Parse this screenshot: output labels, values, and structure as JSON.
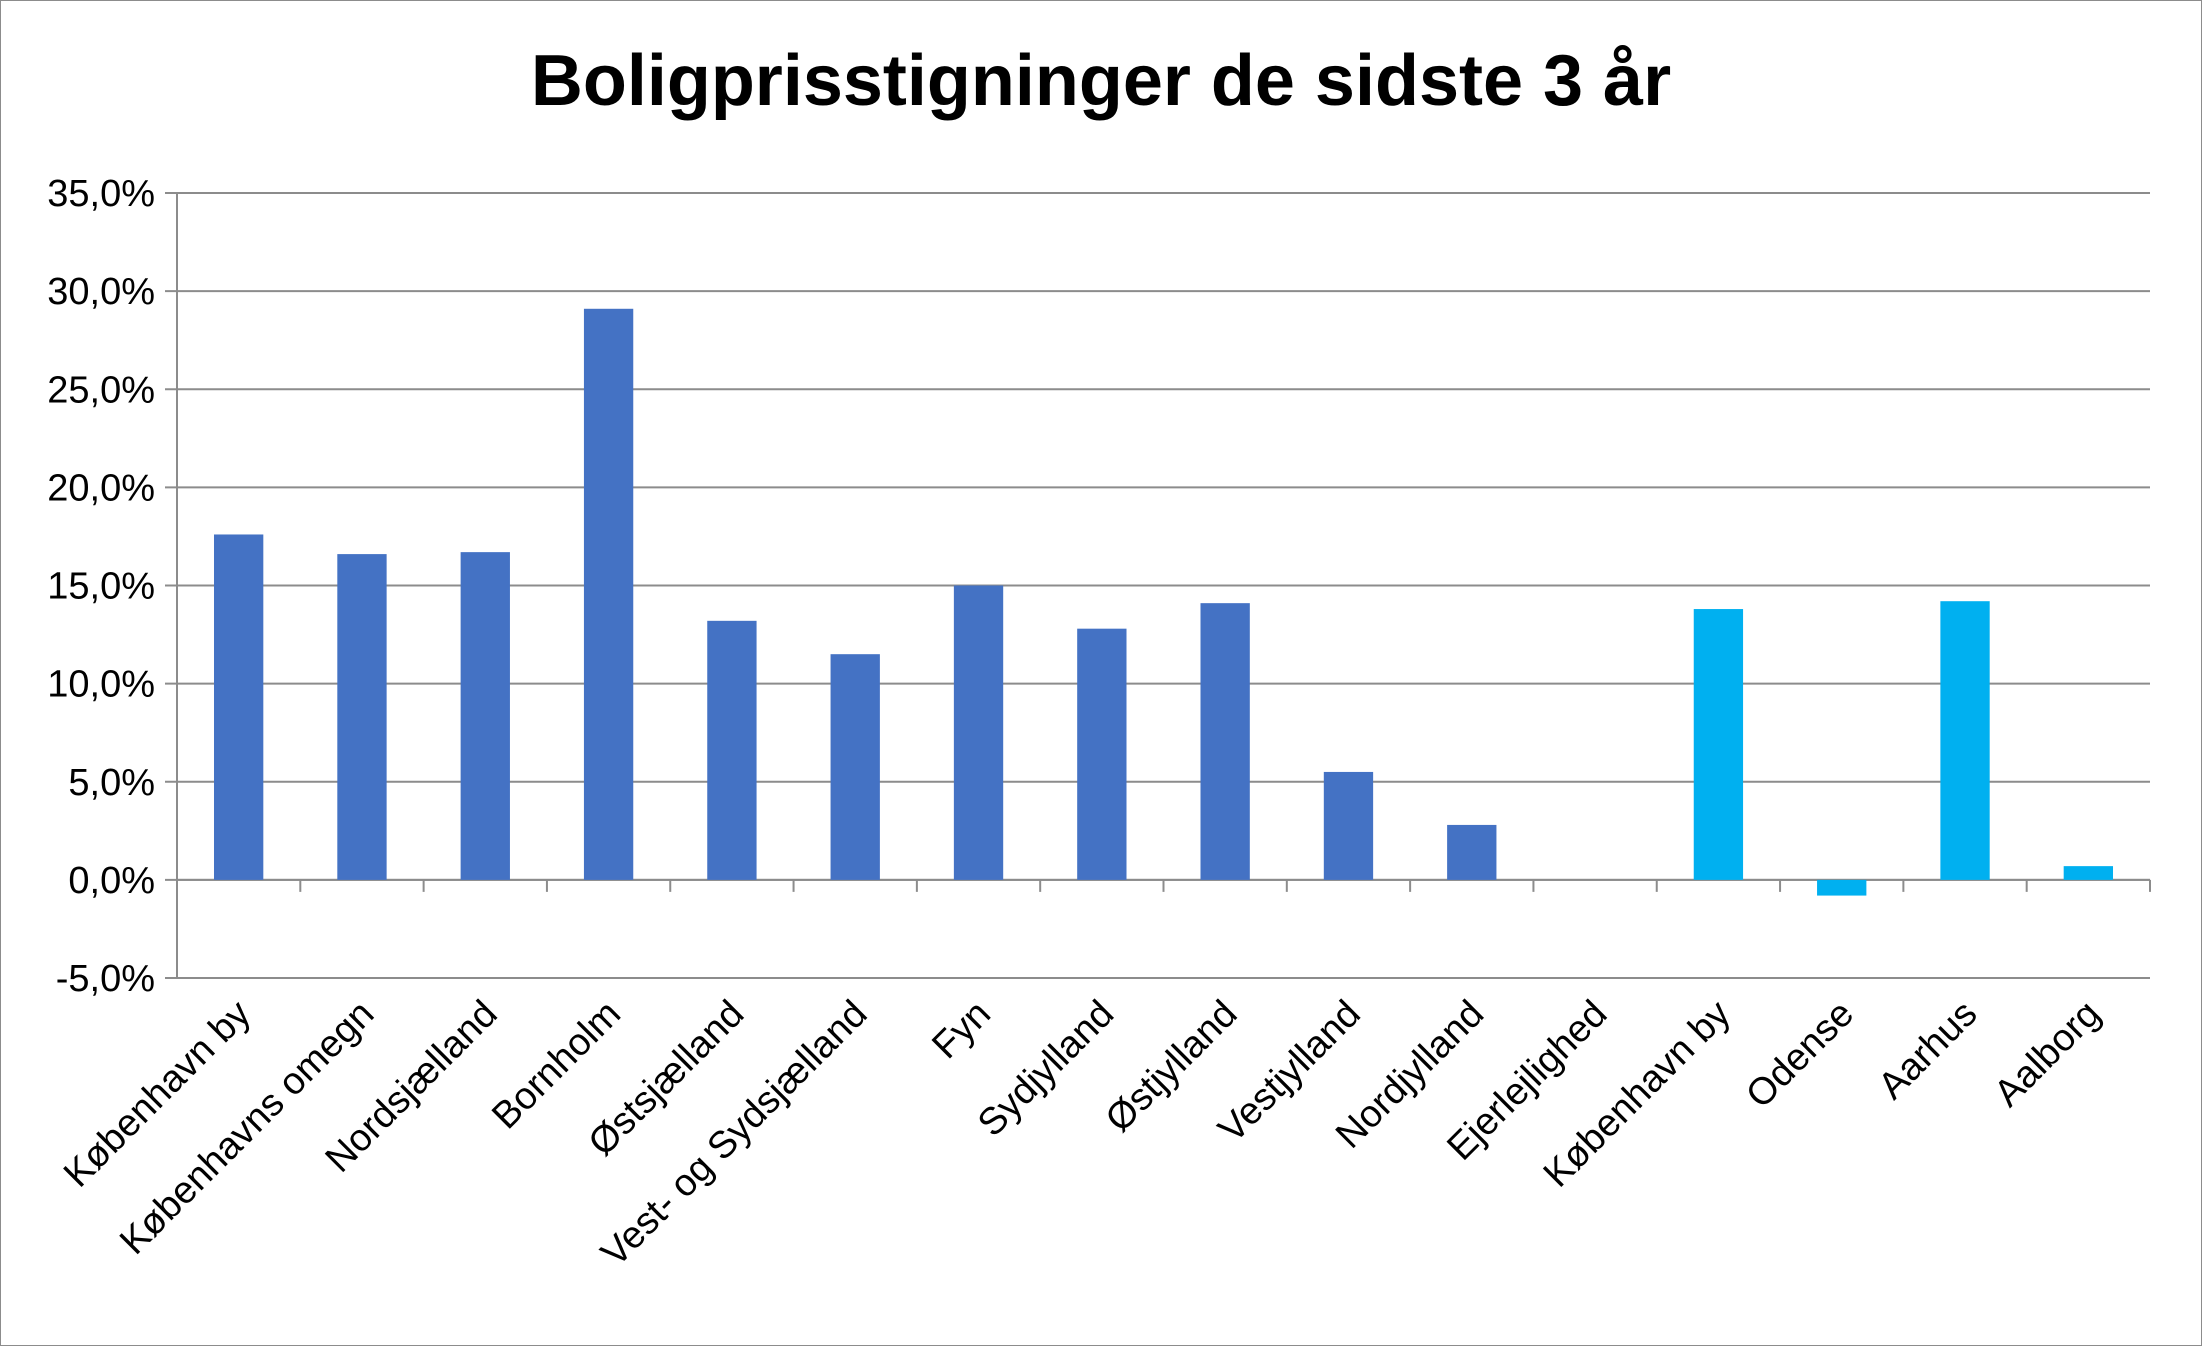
{
  "chart_data": {
    "type": "bar",
    "title": "Boligprisstigninger de sidste 3 år",
    "xlabel": "",
    "ylabel": "",
    "ylim": [
      -5,
      35
    ],
    "yticks": [
      "-5,0%",
      "0,0%",
      "5,0%",
      "10,0%",
      "15,0%",
      "20,0%",
      "25,0%",
      "30,0%",
      "35,0%"
    ],
    "ytick_values": [
      -5,
      0,
      5,
      10,
      15,
      20,
      25,
      30,
      35
    ],
    "grid": true,
    "legend": "none",
    "colors": {
      "primary": "#4472c4",
      "secondary": "#00b0f0",
      "grid": "#8c8c8c"
    },
    "categories": [
      "København by",
      "Københavns omegn",
      "Nordsjælland",
      "Bornholm",
      "Østsjælland",
      "Vest- og Sydsjælland",
      "Fyn",
      "Sydjylland",
      "Østjylland",
      "Vestjylland",
      "Nordjylland",
      "Ejerlejlighed",
      "København by",
      "Odense",
      "Aarhus",
      "Aalborg"
    ],
    "values": [
      17.6,
      16.6,
      16.7,
      29.1,
      13.2,
      11.5,
      15.0,
      12.8,
      14.1,
      5.5,
      2.8,
      null,
      13.8,
      -0.8,
      14.2,
      0.7
    ],
    "bar_groups": [
      "primary",
      "primary",
      "primary",
      "primary",
      "primary",
      "primary",
      "primary",
      "primary",
      "primary",
      "primary",
      "primary",
      "primary",
      "secondary",
      "secondary",
      "secondary",
      "secondary"
    ]
  }
}
